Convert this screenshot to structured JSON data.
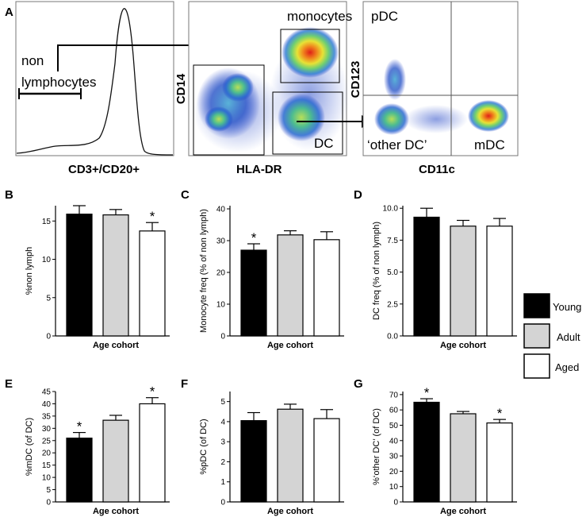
{
  "panel_labels": [
    "A",
    "B",
    "C",
    "D",
    "E",
    "F",
    "G"
  ],
  "flow": {
    "histogram": {
      "xlabel": "CD3+/CD20+",
      "gate_label_line1": "non",
      "gate_label_line2": "lymphocytes"
    },
    "monocyte_plot": {
      "xlabel": "HLA-DR",
      "ylabel": "CD14",
      "gate_monocytes": "monocytes",
      "gate_dc": "DC"
    },
    "dc_plot": {
      "xlabel": "CD11c",
      "ylabel": "CD123",
      "q_pdc": "pDC",
      "q_other": "‘other DC’",
      "q_mdc": "mDC"
    }
  },
  "legend": {
    "items": [
      {
        "label": "Young",
        "color": "#000000"
      },
      {
        "label": "Adult",
        "color": "#d4d4d4"
      },
      {
        "label": "Aged",
        "color": "#ffffff"
      }
    ]
  },
  "chart_data": [
    {
      "panel": "B",
      "type": "bar",
      "categories": [
        "Young",
        "Adult",
        "Aged"
      ],
      "values": [
        15.9,
        15.8,
        13.7
      ],
      "errors": [
        1.1,
        0.7,
        1.1
      ],
      "significant": [
        false,
        false,
        true
      ],
      "ylabel": "%non lymph",
      "xlabel": "Age cohort",
      "ylim": [
        0,
        17
      ],
      "ticks": [
        0,
        5,
        10,
        15
      ],
      "tick_decimals": 0
    },
    {
      "panel": "C",
      "type": "bar",
      "categories": [
        "Young",
        "Adult",
        "Aged"
      ],
      "values": [
        27.0,
        31.8,
        30.3
      ],
      "errors": [
        2.0,
        1.3,
        2.5
      ],
      "significant": [
        true,
        false,
        false
      ],
      "ylabel": "Monocyte freq (% of non lymph)",
      "xlabel": "Age cohort",
      "ylim": [
        0,
        41
      ],
      "ticks": [
        0,
        10,
        20,
        30,
        40
      ],
      "tick_decimals": 0
    },
    {
      "panel": "D",
      "type": "bar",
      "categories": [
        "Young",
        "Adult",
        "Aged"
      ],
      "values": [
        9.3,
        8.6,
        8.6
      ],
      "errors": [
        0.7,
        0.45,
        0.6
      ],
      "significant": [
        false,
        false,
        false
      ],
      "ylabel": "DC freq (% of non lymph)",
      "xlabel": "Age cohort",
      "ylim": [
        0,
        10.2
      ],
      "ticks": [
        0,
        2.5,
        5.0,
        7.5,
        10.0
      ],
      "tick_decimals": 1
    },
    {
      "panel": "E",
      "type": "bar",
      "categories": [
        "Young",
        "Adult",
        "Aged"
      ],
      "values": [
        26.0,
        33.3,
        40.0
      ],
      "errors": [
        2.3,
        2.0,
        2.5
      ],
      "significant": [
        true,
        false,
        true
      ],
      "ylabel": "%mDC (of DC)",
      "xlabel": "Age cohort",
      "ylim": [
        0,
        45
      ],
      "ticks": [
        0,
        5,
        10,
        15,
        20,
        25,
        30,
        35,
        40,
        45
      ],
      "tick_decimals": 0
    },
    {
      "panel": "F",
      "type": "bar",
      "categories": [
        "Young",
        "Adult",
        "Aged"
      ],
      "values": [
        4.05,
        4.62,
        4.15
      ],
      "errors": [
        0.4,
        0.25,
        0.45
      ],
      "significant": [
        false,
        false,
        false
      ],
      "ylabel": "%pDC (of DC)",
      "xlabel": "Age cohort",
      "ylim": [
        0,
        5.5
      ],
      "ticks": [
        0,
        1,
        2,
        3,
        4,
        5
      ],
      "tick_decimals": 0
    },
    {
      "panel": "G",
      "type": "bar",
      "categories": [
        "Young",
        "Adult",
        "Aged"
      ],
      "values": [
        65.0,
        57.5,
        51.5
      ],
      "errors": [
        2.3,
        1.5,
        2.3
      ],
      "significant": [
        true,
        false,
        true
      ],
      "ylabel": "%‘other DC’ (of DC)",
      "xlabel": "Age cohort",
      "ylim": [
        0,
        72
      ],
      "ticks": [
        0,
        10,
        20,
        30,
        40,
        50,
        60,
        70
      ],
      "tick_decimals": 0
    }
  ]
}
